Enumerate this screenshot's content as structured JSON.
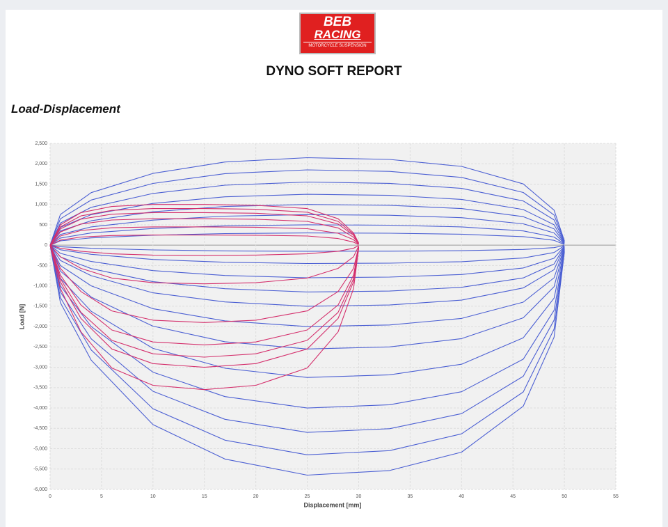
{
  "header": {
    "logo": {
      "line1": "BEB",
      "line2": "RACING",
      "line3": "MOTORCYCLE SUSPENSION"
    },
    "title": "DYNO SOFT REPORT"
  },
  "section_title": "Load-Displacement",
  "chart_data": {
    "type": "line",
    "xlabel": "Displacement [mm]",
    "ylabel": "Load [N]",
    "xlim": [
      0,
      55
    ],
    "xticks": [
      0,
      5,
      10,
      15,
      20,
      25,
      30,
      35,
      40,
      45,
      50,
      55
    ],
    "ylim": [
      -6000,
      2500
    ],
    "yticks": [
      {
        "value": 2500,
        "label": "2,500"
      },
      {
        "value": 2000,
        "label": "2,000"
      },
      {
        "value": 1500,
        "label": "1,500"
      },
      {
        "value": 1000,
        "label": "1,000"
      },
      500,
      0,
      -500,
      {
        "value": -1000,
        "label": "-1,000"
      },
      {
        "value": -1500,
        "label": "-1,500"
      },
      {
        "value": -2000,
        "label": "-2,000"
      },
      {
        "value": -2500,
        "label": "-2,500"
      },
      {
        "value": -3000,
        "label": "-3,000"
      },
      {
        "value": -3500,
        "label": "-3,500"
      },
      {
        "value": -4000,
        "label": "-4,000"
      },
      {
        "value": -4500,
        "label": "-4,500"
      },
      {
        "value": -5000,
        "label": "-5,000"
      },
      {
        "value": -5500,
        "label": "-5,500"
      },
      {
        "value": -6000,
        "label": "-6,000"
      }
    ],
    "grid": true,
    "series": [
      {
        "color": "#4b5fd3",
        "x": [
          0,
          1,
          4,
          10,
          17,
          25,
          33,
          40,
          46,
          49,
          50
        ],
        "values": [
          0,
          753,
          1290,
          1763,
          2043,
          2150,
          2107,
          1935,
          1505,
          860,
          108
        ]
      },
      {
        "color": "#4b5fd3",
        "x": [
          0,
          1,
          4,
          10,
          17,
          25,
          33,
          40,
          46,
          49,
          50
        ],
        "values": [
          0,
          648,
          1110,
          1517,
          1758,
          1850,
          1813,
          1665,
          1295,
          740,
          93
        ]
      },
      {
        "color": "#4b5fd3",
        "x": [
          0,
          1,
          4,
          10,
          17,
          25,
          33,
          40,
          46,
          49,
          50
        ],
        "values": [
          0,
          543,
          930,
          1271,
          1473,
          1550,
          1519,
          1395,
          1085,
          620,
          78
        ]
      },
      {
        "color": "#4b5fd3",
        "x": [
          0,
          1,
          4,
          10,
          17,
          25,
          33,
          40,
          46,
          49,
          50
        ],
        "values": [
          0,
          438,
          750,
          1025,
          1188,
          1250,
          1225,
          1125,
          875,
          500,
          63
        ]
      },
      {
        "color": "#4b5fd3",
        "x": [
          0,
          1,
          4,
          10,
          17,
          25,
          33,
          40,
          46,
          49,
          50
        ],
        "values": [
          0,
          350,
          600,
          820,
          950,
          1000,
          980,
          900,
          700,
          400,
          50
        ]
      },
      {
        "color": "#4b5fd3",
        "x": [
          0,
          1,
          4,
          10,
          17,
          25,
          33,
          40,
          46,
          49,
          50
        ],
        "values": [
          0,
          263,
          450,
          615,
          713,
          750,
          735,
          675,
          525,
          300,
          38
        ]
      },
      {
        "color": "#4b5fd3",
        "x": [
          0,
          1,
          4,
          10,
          17,
          25,
          33,
          40,
          46,
          49,
          50
        ],
        "values": [
          0,
          175,
          300,
          410,
          475,
          500,
          490,
          450,
          350,
          200,
          25
        ]
      },
      {
        "color": "#4b5fd3",
        "x": [
          0,
          1,
          4,
          10,
          17,
          25,
          33,
          40,
          46,
          49,
          50
        ],
        "values": [
          0,
          105,
          180,
          246,
          285,
          300,
          294,
          270,
          210,
          120,
          15
        ]
      },
      {
        "color": "#4b5fd3",
        "x": [
          0,
          1,
          4,
          10,
          17,
          25,
          33,
          40,
          46,
          49,
          50
        ],
        "values": [
          0,
          -38,
          -75,
          -117,
          -140,
          -150,
          -147,
          -135,
          -105,
          -60,
          -5
        ]
      },
      {
        "color": "#4b5fd3",
        "x": [
          0,
          1,
          4,
          10,
          17,
          25,
          33,
          40,
          46,
          49,
          50
        ],
        "values": [
          0,
          -113,
          -225,
          -351,
          -419,
          -450,
          -441,
          -405,
          -315,
          -180,
          -14
        ]
      },
      {
        "color": "#4b5fd3",
        "x": [
          0,
          1,
          4,
          10,
          17,
          25,
          33,
          40,
          46,
          49,
          50
        ],
        "values": [
          0,
          -200,
          -400,
          -624,
          -744,
          -800,
          -784,
          -720,
          -560,
          -320,
          -24
        ]
      },
      {
        "color": "#4b5fd3",
        "x": [
          0,
          1,
          4,
          10,
          17,
          25,
          33,
          40,
          46,
          49,
          50
        ],
        "values": [
          0,
          -288,
          -575,
          -897,
          -1070,
          -1150,
          -1127,
          -1035,
          -805,
          -460,
          -35
        ]
      },
      {
        "color": "#4b5fd3",
        "x": [
          0,
          1,
          4,
          10,
          17,
          25,
          33,
          40,
          46,
          49,
          50
        ],
        "values": [
          0,
          -375,
          -750,
          -1170,
          -1395,
          -1500,
          -1470,
          -1350,
          -1050,
          -600,
          -45
        ]
      },
      {
        "color": "#4b5fd3",
        "x": [
          0,
          1,
          4,
          10,
          17,
          25,
          33,
          40,
          46,
          49,
          50
        ],
        "values": [
          0,
          -500,
          -1000,
          -1560,
          -1860,
          -2000,
          -1960,
          -1800,
          -1400,
          -800,
          -60
        ]
      },
      {
        "color": "#4b5fd3",
        "x": [
          0,
          1,
          4,
          10,
          17,
          25,
          33,
          40,
          46,
          49,
          50
        ],
        "values": [
          0,
          -638,
          -1275,
          -1989,
          -2372,
          -2550,
          -2499,
          -2295,
          -1785,
          -1020,
          -77
        ]
      },
      {
        "color": "#4b5fd3",
        "x": [
          0,
          1,
          4,
          10,
          17,
          25,
          33,
          40,
          46,
          49,
          50
        ],
        "values": [
          0,
          -813,
          -1625,
          -2535,
          -3023,
          -3250,
          -3185,
          -2925,
          -2275,
          -1300,
          -98
        ]
      },
      {
        "color": "#4b5fd3",
        "x": [
          0,
          1,
          4,
          10,
          17,
          25,
          33,
          40,
          46,
          49,
          50
        ],
        "values": [
          0,
          -1000,
          -2000,
          -3120,
          -3720,
          -4000,
          -3920,
          -3600,
          -2800,
          -1600,
          -120
        ]
      },
      {
        "color": "#4b5fd3",
        "x": [
          0,
          1,
          4,
          10,
          17,
          25,
          33,
          40,
          46,
          49,
          50
        ],
        "values": [
          0,
          -1150,
          -2300,
          -3588,
          -4278,
          -4600,
          -4508,
          -4140,
          -3220,
          -1840,
          -138
        ]
      },
      {
        "color": "#4b5fd3",
        "x": [
          0,
          1,
          4,
          10,
          17,
          25,
          33,
          40,
          46,
          49,
          50
        ],
        "values": [
          0,
          -1288,
          -2575,
          -4017,
          -4790,
          -5150,
          -5047,
          -4635,
          -3605,
          -2060,
          -155
        ]
      },
      {
        "color": "#4b5fd3",
        "x": [
          0,
          1,
          4,
          10,
          17,
          25,
          33,
          40,
          46,
          49,
          50
        ],
        "values": [
          0,
          -1413,
          -2825,
          -4407,
          -5255,
          -5650,
          -5537,
          -5085,
          -3955,
          -2260,
          -170
        ]
      },
      {
        "color": "#d42f6c",
        "x": [
          0,
          1,
          3,
          6,
          10,
          15,
          20,
          25,
          28,
          29.5,
          30
        ],
        "values": [
          0,
          500,
          800,
          950,
          1000,
          1000,
          980,
          900,
          650,
          300,
          50
        ]
      },
      {
        "color": "#d42f6c",
        "x": [
          0,
          1,
          3,
          6,
          10,
          15,
          20,
          25,
          28,
          29.5,
          30
        ],
        "values": [
          0,
          450,
          720,
          855,
          900,
          900,
          882,
          810,
          585,
          270,
          45
        ]
      },
      {
        "color": "#d42f6c",
        "x": [
          0,
          1,
          3,
          6,
          10,
          15,
          20,
          25,
          28,
          29.5,
          30
        ],
        "values": [
          0,
          400,
          640,
          760,
          800,
          800,
          784,
          720,
          520,
          240,
          40
        ]
      },
      {
        "color": "#d42f6c",
        "x": [
          0,
          1,
          3,
          6,
          10,
          15,
          20,
          25,
          28,
          29.5,
          30
        ],
        "values": [
          0,
          325,
          520,
          618,
          650,
          650,
          637,
          585,
          423,
          195,
          33
        ]
      },
      {
        "color": "#d42f6c",
        "x": [
          0,
          1,
          3,
          6,
          10,
          15,
          20,
          25,
          28,
          29.5,
          30
        ],
        "values": [
          0,
          225,
          360,
          428,
          450,
          450,
          441,
          405,
          293,
          135,
          23
        ]
      },
      {
        "color": "#d42f6c",
        "x": [
          0,
          1,
          3,
          6,
          10,
          15,
          20,
          25,
          28,
          29.5,
          30
        ],
        "values": [
          0,
          125,
          200,
          238,
          250,
          250,
          245,
          225,
          163,
          75,
          13
        ]
      },
      {
        "color": "#d42f6c",
        "x": [
          0,
          1,
          3,
          6,
          10,
          15,
          20,
          25,
          28,
          29.5,
          30
        ],
        "values": [
          0,
          -75,
          -150,
          -213,
          -243,
          -250,
          -243,
          -213,
          -150,
          -75,
          -5
        ]
      },
      {
        "color": "#d42f6c",
        "x": [
          0,
          1,
          3,
          6,
          10,
          15,
          20,
          25,
          28,
          29.5,
          30
        ],
        "values": [
          0,
          -285,
          -570,
          -808,
          -922,
          -950,
          -922,
          -808,
          -570,
          -285,
          -19
        ]
      },
      {
        "color": "#d42f6c",
        "x": [
          0,
          1,
          3,
          6,
          10,
          15,
          20,
          25,
          28,
          29.5,
          30
        ],
        "values": [
          0,
          -570,
          -1140,
          -1615,
          -1843,
          -1900,
          -1843,
          -1615,
          -1140,
          -570,
          -38
        ]
      },
      {
        "color": "#d42f6c",
        "x": [
          0,
          1,
          3,
          6,
          10,
          15,
          20,
          25,
          28,
          29.5,
          30
        ],
        "values": [
          0,
          -735,
          -1470,
          -2083,
          -2377,
          -2450,
          -2377,
          -2083,
          -1470,
          -735,
          -49
        ]
      },
      {
        "color": "#d42f6c",
        "x": [
          0,
          1,
          3,
          6,
          10,
          15,
          20,
          25,
          28,
          29.5,
          30
        ],
        "values": [
          0,
          -825,
          -1650,
          -2338,
          -2668,
          -2750,
          -2668,
          -2338,
          -1650,
          -825,
          -55
        ]
      },
      {
        "color": "#d42f6c",
        "x": [
          0,
          1,
          3,
          6,
          10,
          15,
          20,
          25,
          28,
          29.5,
          30
        ],
        "values": [
          0,
          -900,
          -1800,
          -2550,
          -2910,
          -3000,
          -2910,
          -2550,
          -1800,
          -900,
          -60
        ]
      },
      {
        "color": "#d42f6c",
        "x": [
          0,
          1,
          3,
          6,
          10,
          15,
          20,
          25,
          28,
          29.5,
          30
        ],
        "values": [
          0,
          -1065,
          -2130,
          -3018,
          -3444,
          -3550,
          -3444,
          -3018,
          -2130,
          -1065,
          -71
        ]
      }
    ]
  }
}
